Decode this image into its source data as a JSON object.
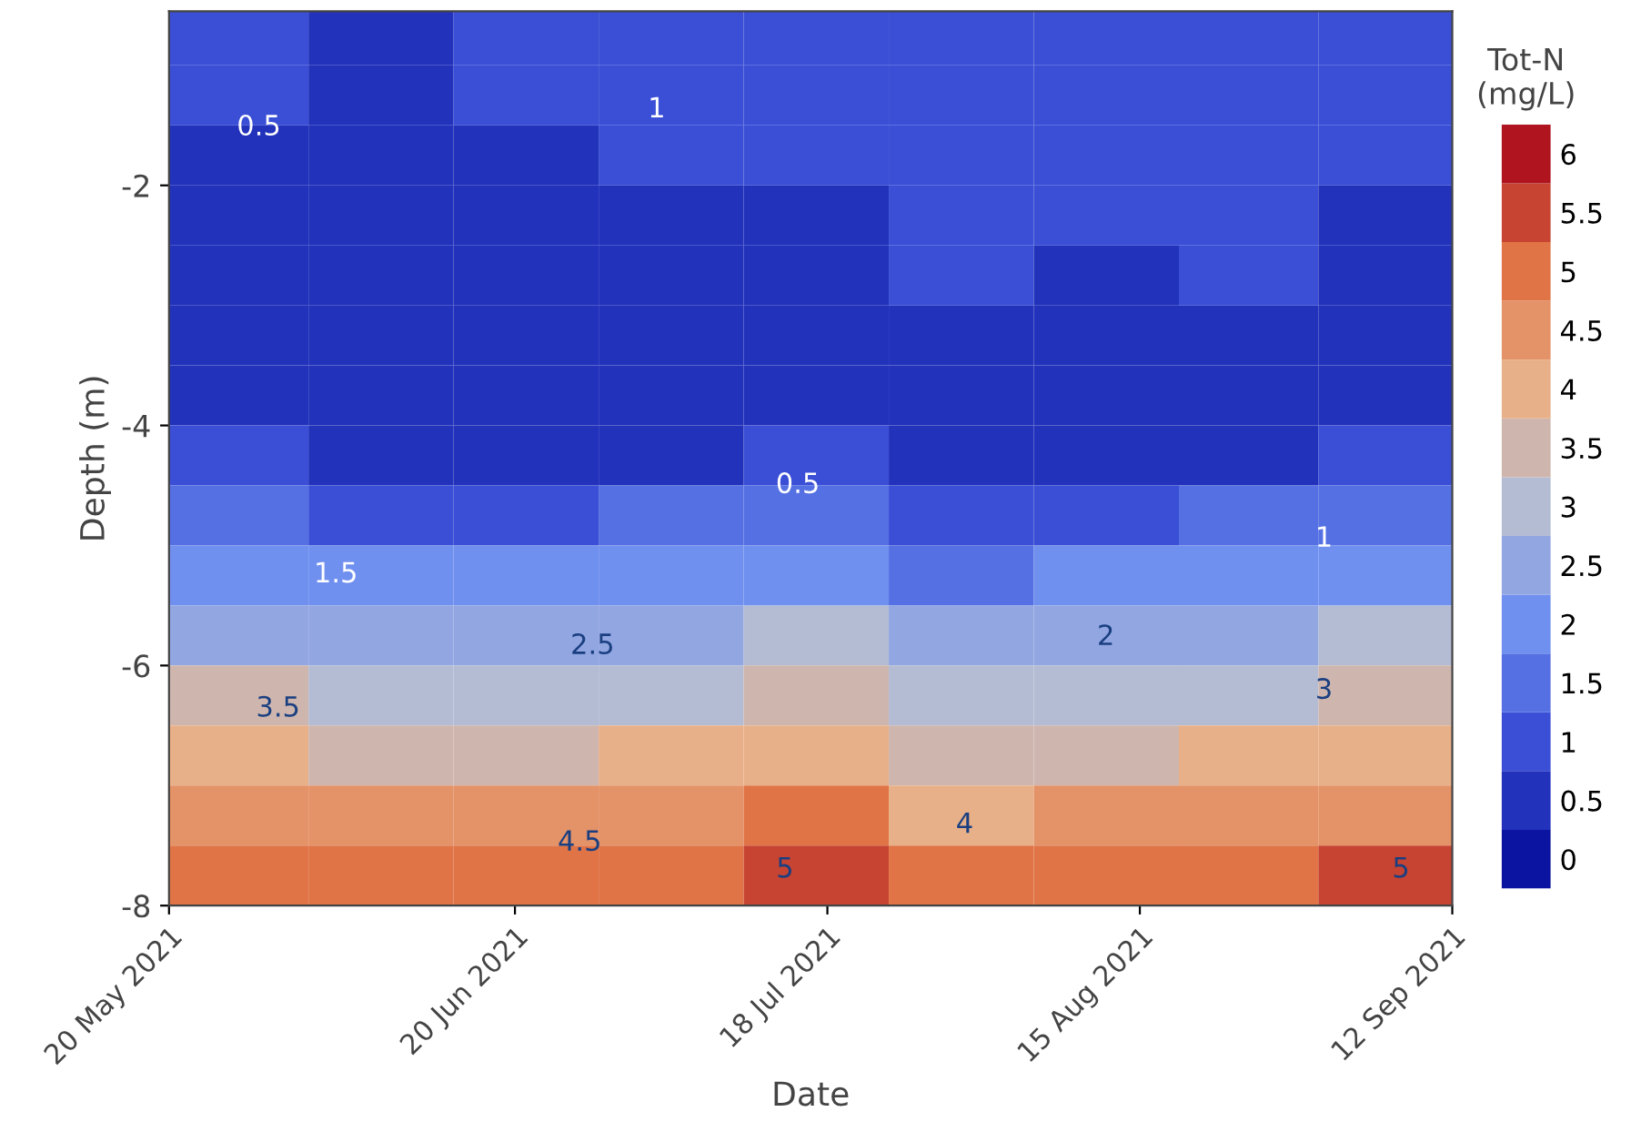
{
  "chart_data": {
    "type": "heatmap",
    "xlabel": "Date",
    "ylabel": "Depth (m)",
    "clabel": "Tot-N\n(mg/L)",
    "x": [
      "2021-05-26",
      "2021-06-08",
      "2021-06-21",
      "2021-07-04",
      "2021-07-17",
      "2021-07-30",
      "2021-08-12",
      "2021-08-25",
      "2021-09-06"
    ],
    "y": [
      -0.75,
      -1.25,
      -1.75,
      -2.25,
      -2.75,
      -3.25,
      -3.75,
      -4.25,
      -4.75,
      -5.25,
      -5.75,
      -6.25,
      -6.75,
      -7.25,
      -7.75
    ],
    "cells": [
      [
        1.0,
        0.5,
        1.0,
        1.0,
        1.0,
        1.0,
        1.0,
        1.0,
        1.0
      ],
      [
        1.0,
        0.5,
        1.0,
        1.0,
        1.0,
        1.0,
        1.0,
        1.0,
        1.0
      ],
      [
        0.5,
        0.5,
        0.5,
        1.0,
        1.0,
        1.0,
        1.0,
        1.0,
        1.0
      ],
      [
        0.5,
        0.5,
        0.5,
        0.5,
        0.5,
        1.0,
        1.0,
        1.0,
        0.5
      ],
      [
        0.5,
        0.5,
        0.5,
        0.5,
        0.5,
        1.0,
        0.5,
        1.0,
        0.5
      ],
      [
        0.5,
        0.5,
        0.5,
        0.5,
        0.5,
        0.5,
        0.5,
        0.5,
        0.5
      ],
      [
        0.5,
        0.5,
        0.5,
        0.5,
        0.5,
        0.5,
        0.5,
        0.5,
        0.5
      ],
      [
        0.8,
        0.6,
        0.5,
        0.7,
        0.9,
        0.4,
        0.6,
        0.7,
        0.9
      ],
      [
        1.4,
        1.2,
        1.1,
        1.3,
        1.6,
        1.1,
        1.2,
        1.3,
        1.5
      ],
      [
        2.0,
        1.8,
        1.8,
        2.0,
        2.2,
        1.7,
        1.8,
        2.0,
        2.2
      ],
      [
        2.7,
        2.5,
        2.4,
        2.6,
        2.9,
        2.3,
        2.5,
        2.6,
        2.8
      ],
      [
        3.3,
        3.1,
        3.0,
        3.2,
        3.5,
        3.0,
        3.1,
        3.2,
        3.4
      ],
      [
        3.9,
        3.7,
        3.7,
        3.9,
        4.1,
        3.6,
        3.7,
        3.9,
        4.1
      ],
      [
        4.6,
        4.4,
        4.3,
        4.5,
        4.8,
        4.2,
        4.4,
        4.5,
        4.7
      ],
      [
        5.2,
        5.0,
        5.0,
        5.1,
        5.4,
        4.9,
        5.0,
        5.1,
        5.3
      ]
    ],
    "xlim": [
      "2021-05-20",
      "2021-09-12"
    ],
    "xticks": [
      {
        "value": "2021-05-20",
        "label": "20 May 2021"
      },
      {
        "value": "2021-06-20",
        "label": "20 Jun 2021"
      },
      {
        "value": "2021-07-18",
        "label": "18 Jul 2021"
      },
      {
        "value": "2021-08-15",
        "label": "15 Aug 2021"
      },
      {
        "value": "2021-09-12",
        "label": "12 Sep 2021"
      }
    ],
    "ylim": [
      -8,
      -0.55
    ],
    "yticks": [
      -8,
      -6,
      -4,
      -2
    ],
    "clim": [
      -0.25,
      6.25
    ],
    "cticks": [
      0,
      0.5,
      1,
      1.5,
      2,
      2.5,
      3,
      3.5,
      4,
      4.5,
      5,
      5.5,
      6
    ],
    "annotations": [
      "0.5",
      "1",
      "0.5",
      "1",
      "1.5",
      "2.5",
      "2",
      "3.5",
      "3",
      "4.5",
      "4",
      "5",
      "5"
    ]
  }
}
